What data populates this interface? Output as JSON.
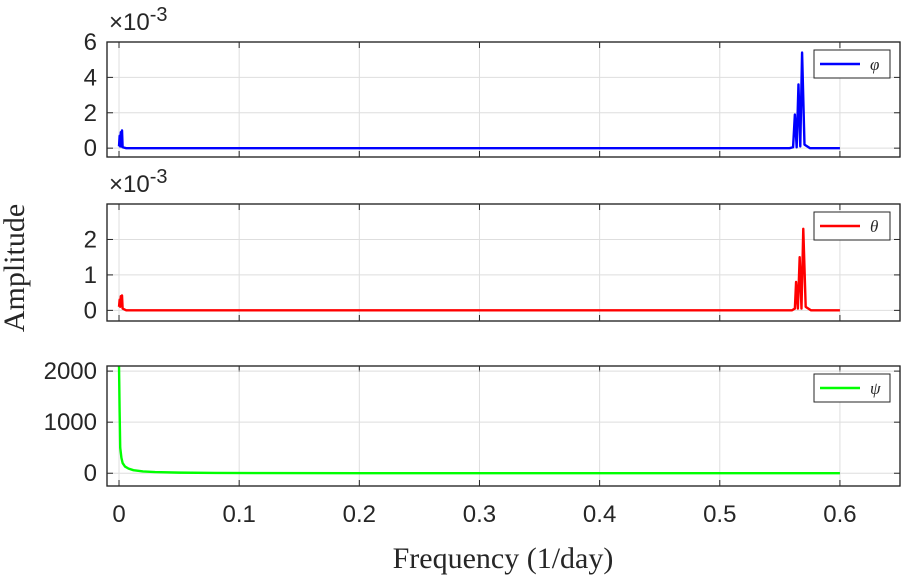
{
  "chart_data": {
    "type": "line",
    "xlabel": "Frequency (1/day)",
    "ylabel": "Amplitude",
    "xlim": [
      -0.01,
      0.65
    ],
    "xticks": [
      0,
      0.1,
      0.2,
      0.3,
      0.4,
      0.5,
      0.6
    ],
    "xtick_labels": [
      "0",
      "0.1",
      "0.2",
      "0.3",
      "0.4",
      "0.5",
      "0.6"
    ],
    "grid": true,
    "subplots": [
      {
        "series_name": "φ",
        "color": "#0000ff",
        "exponent_label": "×10",
        "exponent_power": "-3",
        "ylim": [
          -0.0005,
          0.006
        ],
        "yticks": [
          0,
          2,
          4,
          6
        ],
        "ytick_labels": [
          "0",
          "2",
          "4",
          "6"
        ],
        "ytick_scale": 0.001,
        "legend_position": "top-right",
        "points": [
          [
            0,
            0.0001
          ],
          [
            0.0005,
            0.0007
          ],
          [
            0.001,
            0.0001
          ],
          [
            0.0015,
            0.0009
          ],
          [
            0.002,
            0.0001
          ],
          [
            0.0025,
            0.001
          ],
          [
            0.003,
            5e-05
          ],
          [
            0.006,
            0.0
          ],
          [
            0.558,
            0.0
          ],
          [
            0.561,
            5e-05
          ],
          [
            0.5625,
            0.0019
          ],
          [
            0.564,
            5e-05
          ],
          [
            0.5655,
            0.0036
          ],
          [
            0.567,
            0.0001
          ],
          [
            0.5685,
            0.0054
          ],
          [
            0.5705,
            0.0002
          ],
          [
            0.575,
            0.0
          ],
          [
            0.6,
            0.0
          ]
        ]
      },
      {
        "series_name": "θ",
        "color": "#ff0000",
        "exponent_label": "×10",
        "exponent_power": "-3",
        "ylim": [
          -0.0003,
          0.003
        ],
        "yticks": [
          0,
          1,
          2
        ],
        "ytick_labels": [
          "0",
          "1",
          "2"
        ],
        "ytick_scale": 0.001,
        "legend_position": "top-right",
        "points": [
          [
            0,
            0.0001
          ],
          [
            0.0005,
            0.0003
          ],
          [
            0.001,
            0.0001
          ],
          [
            0.0015,
            0.0004
          ],
          [
            0.002,
            0.0002
          ],
          [
            0.0025,
            0.00042
          ],
          [
            0.003,
            5e-05
          ],
          [
            0.006,
            0.0
          ],
          [
            0.56,
            0.0
          ],
          [
            0.5625,
            5e-05
          ],
          [
            0.5635,
            0.0008
          ],
          [
            0.565,
            5e-05
          ],
          [
            0.5665,
            0.0015
          ],
          [
            0.568,
            5e-05
          ],
          [
            0.5695,
            0.0023
          ],
          [
            0.5715,
            0.0001
          ],
          [
            0.576,
            0.0
          ],
          [
            0.6,
            0.0
          ]
        ]
      },
      {
        "series_name": "ψ",
        "color": "#00ff00",
        "exponent_label": "",
        "exponent_power": "",
        "ylim": [
          -250,
          2100
        ],
        "yticks": [
          0,
          1000,
          2000
        ],
        "ytick_labels": [
          "0",
          "1000",
          "2000"
        ],
        "ytick_scale": 1,
        "legend_position": "top-right",
        "points": [
          [
            0,
            2100
          ],
          [
            0.0005,
            1200
          ],
          [
            0.001,
            500
          ],
          [
            0.002,
            300
          ],
          [
            0.003,
            200
          ],
          [
            0.005,
            130
          ],
          [
            0.008,
            90
          ],
          [
            0.012,
            60
          ],
          [
            0.02,
            35
          ],
          [
            0.03,
            22
          ],
          [
            0.05,
            12
          ],
          [
            0.08,
            6
          ],
          [
            0.12,
            3
          ],
          [
            0.2,
            1.5
          ],
          [
            0.3,
            0.8
          ],
          [
            0.4,
            0.5
          ],
          [
            0.5,
            0.3
          ],
          [
            0.6,
            0.2
          ]
        ]
      }
    ]
  }
}
